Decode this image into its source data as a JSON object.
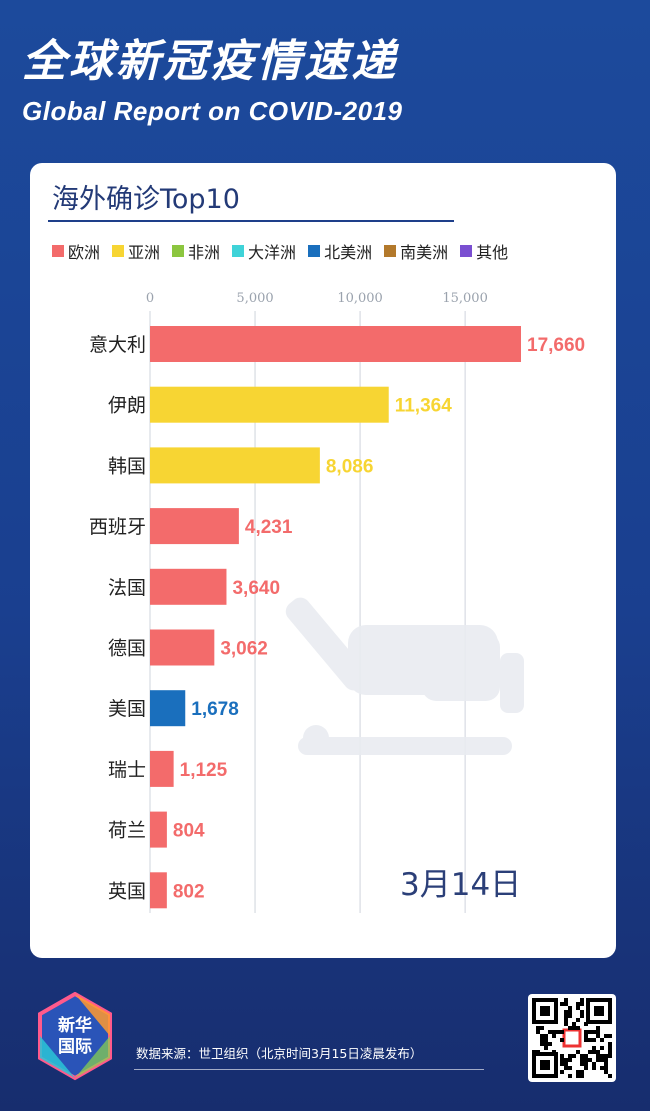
{
  "header": {
    "title_cn": "全球新冠疫情速递",
    "title_en": "Global Report on COVID-2019"
  },
  "card": {
    "title": "海外确诊Top10",
    "date": "3月14日"
  },
  "legend": [
    {
      "label": "欧洲",
      "color": "#f36b6b"
    },
    {
      "label": "亚洲",
      "color": "#f7d533"
    },
    {
      "label": "非洲",
      "color": "#8cc63f"
    },
    {
      "label": "大洋洲",
      "color": "#3fd3d8"
    },
    {
      "label": "北美洲",
      "color": "#1a6fbd"
    },
    {
      "label": "南美洲",
      "color": "#b3792b"
    },
    {
      "label": "其他",
      "color": "#7a4fd1"
    }
  ],
  "chart_data": {
    "type": "bar",
    "orientation": "horizontal",
    "categories": [
      "意大利",
      "伊朗",
      "韩国",
      "西班牙",
      "法国",
      "德国",
      "美国",
      "瑞士",
      "荷兰",
      "英国"
    ],
    "values": [
      17660,
      11364,
      8086,
      4231,
      3640,
      3062,
      1678,
      1125,
      804,
      802
    ],
    "value_labels": [
      "17,660",
      "11,364",
      "8,086",
      "4,231",
      "3,640",
      "3,062",
      "1,678",
      "1,125",
      "804",
      "802"
    ],
    "regions": [
      "欧洲",
      "亚洲",
      "亚洲",
      "欧洲",
      "欧洲",
      "欧洲",
      "北美洲",
      "欧洲",
      "欧洲",
      "欧洲"
    ],
    "x_ticks": [
      0,
      5000,
      10000,
      15000
    ],
    "x_tick_labels": [
      "0",
      "5,000",
      "10,000",
      "15,000"
    ],
    "xlim": [
      0,
      17660
    ],
    "grid": true,
    "legend_position": "top"
  },
  "footer": {
    "logo_line1": "新华",
    "logo_line2": "国际",
    "source": "数据来源：世卫组织（北京时间3月15日凌晨发布）"
  }
}
